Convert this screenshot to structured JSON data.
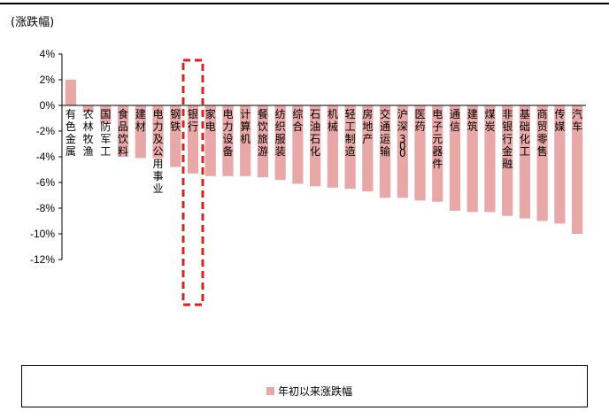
{
  "chart_data": {
    "type": "bar",
    "unit_label": "(涨跌幅)",
    "categories": [
      "有色金属",
      "农林牧渔",
      "国防军工",
      "食品饮料",
      "建材",
      "电力及公用事业",
      "钢铁",
      "银行",
      "家电",
      "电力设备",
      "计算机",
      "餐饮旅游",
      "纺织服装",
      "综合",
      "石油石化",
      "机械",
      "轻工制造",
      "房地产",
      "交通运输",
      "沪深300",
      "医药",
      "电子元器件",
      "通信",
      "建筑",
      "煤炭",
      "非银行金融",
      "基础化工",
      "商贸零售",
      "传媒",
      "汽车"
    ],
    "series": [
      {
        "name": "年初以来涨跌幅",
        "values": [
          2.0,
          -0.5,
          -1.4,
          -4.0,
          -4.1,
          -4.1,
          -4.8,
          -5.3,
          -5.5,
          -5.5,
          -5.5,
          -5.6,
          -5.8,
          -6.1,
          -6.3,
          -6.4,
          -6.5,
          -6.7,
          -7.2,
          -7.2,
          -7.4,
          -7.5,
          -8.2,
          -8.3,
          -8.3,
          -8.6,
          -8.8,
          -9.0,
          -9.2,
          -10.0
        ]
      }
    ],
    "ylim": [
      -12,
      4
    ],
    "yticks": [
      "4%",
      "2%",
      "0%",
      "-2%",
      "-4%",
      "-6%",
      "-8%",
      "-10%",
      "-12%"
    ],
    "ytick_values": [
      4,
      2,
      0,
      -2,
      -4,
      -6,
      -8,
      -10,
      -12
    ],
    "highlight_category": "银行",
    "bar_color": "#e8a8a8",
    "highlight_color": "#e0201b",
    "legend_position": "bottom"
  }
}
